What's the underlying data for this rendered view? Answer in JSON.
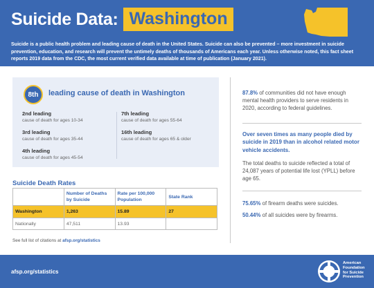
{
  "header": {
    "title_main": "Suicide Data:",
    "title_state": "Washington",
    "intro": "Suicide is a public health problem and leading cause of death in the United States. Suicide can also be prevented – more investment in suicide prevention, education, and research will prevent the untimely deaths of thousands of Americans each year. Unless otherwise noted, this fact sheet reports 2019 data from the CDC, the most current verified data available at time of publication (January 2021)."
  },
  "rank": {
    "badge": "8th",
    "label": "leading cause of death in Washington",
    "items": [
      {
        "title": "2nd leading",
        "sub": "cause of death for ages 10-34"
      },
      {
        "title": "3rd leading",
        "sub": "cause of death for ages 35-44"
      },
      {
        "title": "4th leading",
        "sub": "cause of death for ages 45-54"
      },
      {
        "title": "7th leading",
        "sub": "cause of death for ages 55-64"
      },
      {
        "title": "16th leading",
        "sub": "cause of death for ages 65 & older"
      }
    ]
  },
  "rates": {
    "title": "Suicide Death Rates",
    "headers": [
      "",
      "Number of Deaths by Suicide",
      "Rate per 100,000 Population",
      "State Rank"
    ],
    "rows": [
      {
        "name": "Washington",
        "deaths": "1,263",
        "rate": "15.89",
        "rank": "27"
      },
      {
        "name": "Nationally",
        "deaths": "47,511",
        "rate": "13.93",
        "rank": ""
      }
    ]
  },
  "citation": {
    "prefix": "See full list of citations at",
    "link": "afsp.org/statistics"
  },
  "right": {
    "stat1_bold": "87.8%",
    "stat1_text": " of communities did not have enough mental health providers to serve residents in 2020, according to federal guidelines.",
    "lead": "Over seven times as many people died by suicide in 2019 than in alcohol related motor vehicle accidents.",
    "ypll": "The total deaths to suicide reflected a total of 24,087 years of potential life lost (YPLL) before age 65.",
    "stat2_bold": "75.65%",
    "stat2_text": " of firearm deaths were suicides.",
    "stat3_bold": "50.44%",
    "stat3_text": " of all suicides were by firearms."
  },
  "footer": {
    "url": "afsp.org/statistics",
    "logo_lines": [
      "American",
      "Foundation",
      "for Suicide",
      "Prevention"
    ]
  },
  "colors": {
    "brand_blue": "#3a68b2",
    "accent_yellow": "#f5c22a"
  }
}
